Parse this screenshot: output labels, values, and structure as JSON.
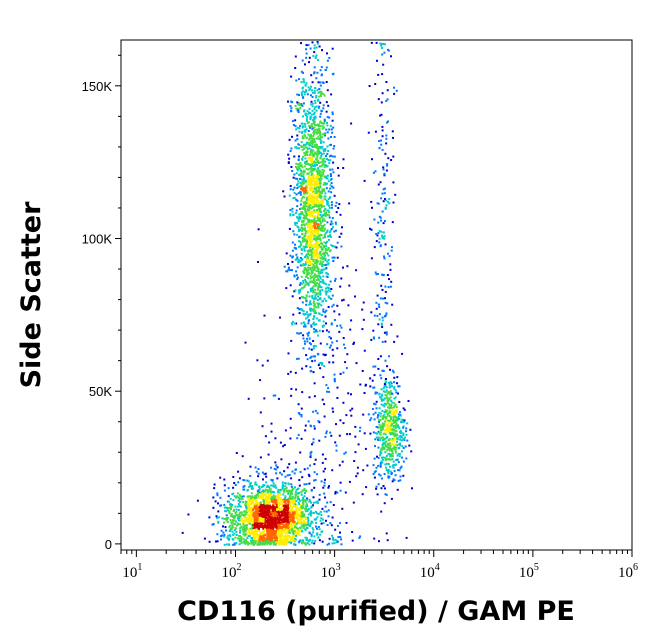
{
  "chart_data": {
    "type": "scatter",
    "subtype": "flow-cytometry-density-dot-plot",
    "xlabel": "CD116 (purified) / GAM PE",
    "ylabel": "Side Scatter",
    "x_scale": "log",
    "xlim": [
      7,
      1000000
    ],
    "ylim": [
      -2000,
      165000
    ],
    "x_ticks": [
      {
        "value": 10,
        "base": "10",
        "exp": "1"
      },
      {
        "value": 100,
        "base": "10",
        "exp": "2"
      },
      {
        "value": 1000,
        "base": "10",
        "exp": "3"
      },
      {
        "value": 10000,
        "base": "10",
        "exp": "4"
      },
      {
        "value": 100000,
        "base": "10",
        "exp": "5"
      },
      {
        "value": 1000000,
        "base": "10",
        "exp": "6"
      }
    ],
    "y_ticks": [
      {
        "value": 0,
        "label": "0"
      },
      {
        "value": 50000,
        "label": "50K"
      },
      {
        "value": 100000,
        "label": "100K"
      },
      {
        "value": 150000,
        "label": "150K"
      }
    ],
    "color_scale": [
      "#0000cc",
      "#0077ff",
      "#00cccc",
      "#44dd44",
      "#ffee00",
      "#ff6600",
      "#cc0000"
    ],
    "populations": [
      {
        "x_center": 220,
        "y_center": 9000,
        "x_spread_log": 0.22,
        "y_spread": 6000,
        "weight": 0.42
      },
      {
        "x_center": 600,
        "y_center": 110000,
        "x_spread_log": 0.1,
        "y_spread": 22000,
        "weight": 0.38
      },
      {
        "x_center": 3500,
        "y_center": 38000,
        "x_spread_log": 0.08,
        "y_spread": 9000,
        "weight": 0.1
      },
      {
        "x_center": 700,
        "y_center": 40000,
        "x_spread_log": 0.3,
        "y_spread": 30000,
        "weight": 0.06
      },
      {
        "x_center": 3000,
        "y_center": 110000,
        "x_spread_log": 0.06,
        "y_spread": 35000,
        "weight": 0.04
      }
    ],
    "grid": false,
    "legend": "none"
  }
}
